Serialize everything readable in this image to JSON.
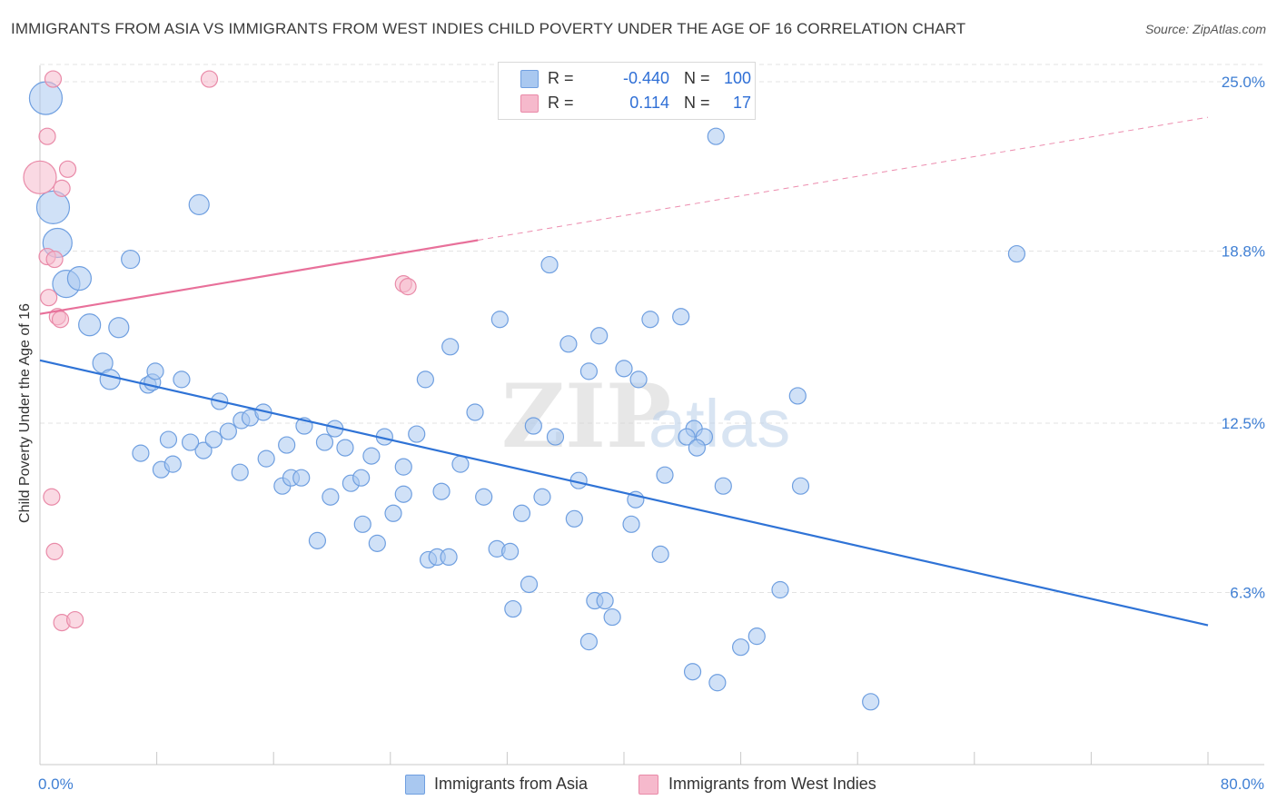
{
  "title": "IMMIGRANTS FROM ASIA VS IMMIGRANTS FROM WEST INDIES CHILD POVERTY UNDER THE AGE OF 16 CORRELATION CHART",
  "source": "Source: ZipAtlas.com",
  "watermark": {
    "zip": "ZIP",
    "atlas": "atlas"
  },
  "legend": {
    "rows": [
      {
        "r_label": "R =",
        "r_value": "-0.440",
        "n_label": "N =",
        "n_value": "100"
      },
      {
        "r_label": "R =",
        "r_value": "0.114",
        "n_label": "N =",
        "n_value": "17"
      }
    ]
  },
  "bottom_legend": {
    "asia": "Immigrants from Asia",
    "west_indies": "Immigrants from West Indies"
  },
  "colors": {
    "asia_fill": "#a9c8f0",
    "asia_stroke": "#6f9fe0",
    "asia_line": "#2f73d6",
    "wi_fill": "#f6b9cc",
    "wi_stroke": "#e98aa8",
    "wi_line": "#e8709a",
    "tick_label": "#3f7fd4",
    "grid": "#e3e3e3"
  },
  "chart_data": {
    "type": "scatter",
    "title": "IMMIGRANTS FROM ASIA VS IMMIGRANTS FROM WEST INDIES CHILD POVERTY UNDER THE AGE OF 16 CORRELATION CHART",
    "xlabel": "",
    "ylabel": "Child Poverty Under the Age of 16",
    "xlim": [
      0,
      80
    ],
    "ylim": [
      0,
      25.6
    ],
    "x_tick_labels": [
      {
        "value": 0,
        "label": "0.0%"
      },
      {
        "value": 80,
        "label": "80.0%"
      }
    ],
    "x_minor_ticks": [
      0,
      8,
      16,
      24,
      32,
      40,
      48,
      56,
      64,
      72,
      80
    ],
    "y_ticks": [
      {
        "value": 6.3,
        "label": "6.3%"
      },
      {
        "value": 12.5,
        "label": "12.5%"
      },
      {
        "value": 18.8,
        "label": "18.8%"
      },
      {
        "value": 25.0,
        "label": "25.0%"
      }
    ],
    "grid": true,
    "legend_position": "top-center",
    "series": [
      {
        "name": "Immigrants from Asia",
        "trend": {
          "x": [
            0,
            80
          ],
          "y": [
            14.8,
            5.1
          ]
        },
        "points": [
          [
            0.4,
            24.4,
            18
          ],
          [
            0.9,
            20.4,
            18
          ],
          [
            1.2,
            19.1,
            16
          ],
          [
            1.8,
            17.6,
            15
          ],
          [
            2.7,
            17.8,
            13
          ],
          [
            3.4,
            16.1,
            12
          ],
          [
            5.4,
            16.0,
            11
          ],
          [
            4.3,
            14.7,
            11
          ],
          [
            4.8,
            14.1,
            11
          ],
          [
            6.2,
            18.5,
            10
          ],
          [
            7.4,
            13.9,
            9
          ],
          [
            7.7,
            14.0,
            9
          ],
          [
            7.9,
            14.4,
            9
          ],
          [
            9.7,
            14.1,
            9
          ],
          [
            10.9,
            20.5,
            11
          ],
          [
            12.3,
            13.3,
            9
          ],
          [
            12.9,
            12.2,
            9
          ],
          [
            13.8,
            12.6,
            9
          ],
          [
            14.4,
            12.7,
            9
          ],
          [
            15.3,
            12.9,
            9
          ],
          [
            11.2,
            11.5,
            9
          ],
          [
            11.9,
            11.9,
            9
          ],
          [
            8.8,
            11.9,
            9
          ],
          [
            10.3,
            11.8,
            9
          ],
          [
            6.9,
            11.4,
            9
          ],
          [
            8.3,
            10.8,
            9
          ],
          [
            9.1,
            11.0,
            9
          ],
          [
            13.7,
            10.7,
            9
          ],
          [
            15.5,
            11.2,
            9
          ],
          [
            16.6,
            10.2,
            9
          ],
          [
            17.2,
            10.5,
            9
          ],
          [
            17.9,
            10.5,
            9
          ],
          [
            16.9,
            11.7,
            9
          ],
          [
            18.1,
            12.4,
            9
          ],
          [
            19.5,
            11.8,
            9
          ],
          [
            20.2,
            12.3,
            9
          ],
          [
            20.9,
            11.6,
            9
          ],
          [
            19.9,
            9.8,
            9
          ],
          [
            21.3,
            10.3,
            9
          ],
          [
            22.0,
            10.5,
            9
          ],
          [
            22.7,
            11.3,
            9
          ],
          [
            23.6,
            12.0,
            9
          ],
          [
            24.9,
            10.9,
            9
          ],
          [
            25.8,
            12.1,
            9
          ],
          [
            22.1,
            8.8,
            9
          ],
          [
            23.1,
            8.1,
            9
          ],
          [
            24.2,
            9.2,
            9
          ],
          [
            24.9,
            9.9,
            9
          ],
          [
            19.0,
            8.2,
            9
          ],
          [
            26.4,
            14.1,
            9
          ],
          [
            28.1,
            15.3,
            9
          ],
          [
            29.8,
            12.9,
            9
          ],
          [
            28.8,
            11.0,
            9
          ],
          [
            27.5,
            10.0,
            9
          ],
          [
            26.6,
            7.5,
            9
          ],
          [
            27.2,
            7.6,
            9
          ],
          [
            28.0,
            7.6,
            9
          ],
          [
            30.4,
            9.8,
            9
          ],
          [
            31.3,
            7.9,
            9
          ],
          [
            32.2,
            7.8,
            9
          ],
          [
            31.5,
            16.3,
            9
          ],
          [
            34.9,
            18.3,
            9
          ],
          [
            33.8,
            12.4,
            9
          ],
          [
            34.4,
            9.8,
            9
          ],
          [
            33.0,
            9.2,
            9
          ],
          [
            33.5,
            6.6,
            9
          ],
          [
            32.4,
            5.7,
            9
          ],
          [
            35.3,
            12.0,
            9
          ],
          [
            36.2,
            15.4,
            9
          ],
          [
            36.6,
            9.0,
            9
          ],
          [
            36.9,
            10.4,
            9
          ],
          [
            37.6,
            14.4,
            9
          ],
          [
            38.0,
            6.0,
            9
          ],
          [
            38.7,
            6.0,
            9
          ],
          [
            37.6,
            4.5,
            9
          ],
          [
            39.2,
            5.4,
            9
          ],
          [
            40.0,
            14.5,
            9
          ],
          [
            40.5,
            8.8,
            9
          ],
          [
            40.8,
            9.7,
            9
          ],
          [
            41.8,
            16.3,
            9
          ],
          [
            42.8,
            10.6,
            9
          ],
          [
            42.5,
            7.7,
            9
          ],
          [
            43.9,
            16.4,
            9
          ],
          [
            46.3,
            23.0,
            9
          ],
          [
            44.8,
            12.3,
            9
          ],
          [
            44.3,
            12.0,
            9
          ],
          [
            45.5,
            12.0,
            9
          ],
          [
            46.8,
            10.2,
            9
          ],
          [
            44.7,
            3.4,
            9
          ],
          [
            46.4,
            3.0,
            9
          ],
          [
            48.0,
            4.3,
            9
          ],
          [
            49.1,
            4.7,
            9
          ],
          [
            50.7,
            6.4,
            9
          ],
          [
            51.9,
            13.5,
            9
          ],
          [
            52.1,
            10.2,
            9
          ],
          [
            56.9,
            2.3,
            9
          ],
          [
            66.9,
            18.7,
            9
          ],
          [
            41.0,
            14.1,
            9
          ],
          [
            38.3,
            15.7,
            9
          ],
          [
            45.0,
            11.6,
            9
          ]
        ]
      },
      {
        "name": "Immigrants from West Indies",
        "trend": {
          "x": [
            0,
            30
          ],
          "y": [
            16.5,
            19.2
          ]
        },
        "trend_extension": {
          "x": [
            30,
            80
          ],
          "y": [
            19.2,
            23.7
          ]
        },
        "points": [
          [
            0.0,
            21.5,
            18
          ],
          [
            0.5,
            23.0,
            9
          ],
          [
            0.6,
            17.1,
            9
          ],
          [
            0.5,
            18.6,
            9
          ],
          [
            0.9,
            25.1,
            9
          ],
          [
            1.0,
            18.5,
            9
          ],
          [
            1.2,
            16.4,
            9
          ],
          [
            1.4,
            16.3,
            9
          ],
          [
            1.5,
            21.1,
            9
          ],
          [
            1.9,
            21.8,
            9
          ],
          [
            0.8,
            9.8,
            9
          ],
          [
            1.0,
            7.8,
            9
          ],
          [
            1.5,
            5.2,
            9
          ],
          [
            2.4,
            5.3,
            9
          ],
          [
            11.6,
            25.1,
            9
          ],
          [
            24.9,
            17.6,
            9
          ],
          [
            25.2,
            17.5,
            9
          ]
        ]
      }
    ]
  }
}
